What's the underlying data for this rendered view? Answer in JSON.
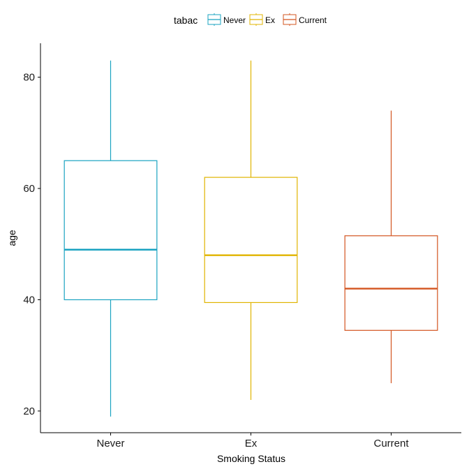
{
  "chart_data": {
    "type": "boxplot",
    "xlabel": "Smoking Status",
    "ylabel": "age",
    "ylim": [
      16.1,
      86.1
    ],
    "yticks": [
      20,
      40,
      60,
      80
    ],
    "grid": false,
    "legend": {
      "title": "tabac",
      "placement": "top",
      "entries": [
        "Never",
        "Ex",
        "Current"
      ]
    },
    "categories": [
      "Never",
      "Ex",
      "Current"
    ],
    "series": [
      {
        "name": "Never",
        "color": "#1AA3C1",
        "whisker_low": 19,
        "q1": 40,
        "median": 49,
        "q3": 65,
        "whisker_high": 83
      },
      {
        "name": "Ex",
        "color": "#E0B400",
        "whisker_low": 22,
        "q1": 39.5,
        "median": 48,
        "q3": 62,
        "whisker_high": 83
      },
      {
        "name": "Current",
        "color": "#D3541F",
        "whisker_low": 25,
        "q1": 34.5,
        "median": 42,
        "q3": 51.5,
        "whisker_high": 74
      }
    ]
  }
}
